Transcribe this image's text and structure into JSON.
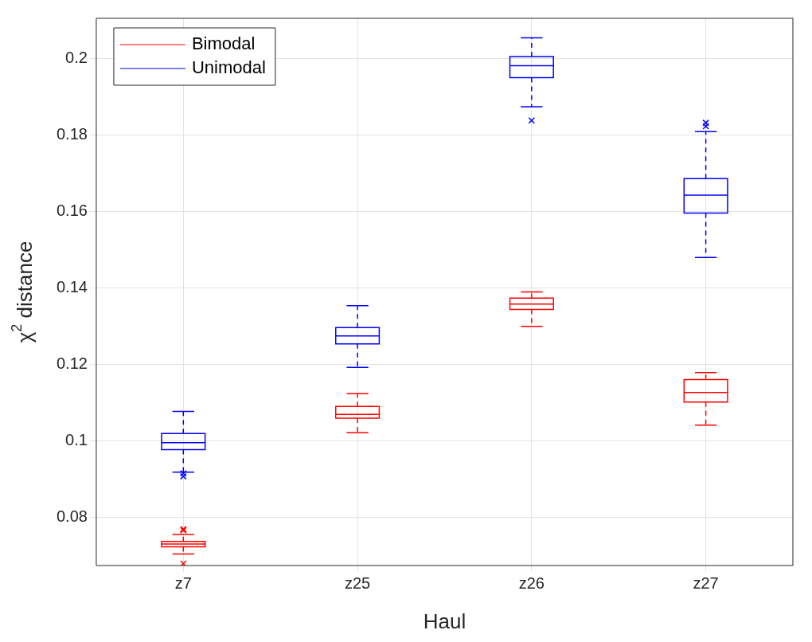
{
  "chart_data": {
    "type": "box",
    "xlabel": "Haul",
    "ylabel": "χ$^{2}$ distance",
    "categories": [
      "z7",
      "z25",
      "z26",
      "z27"
    ],
    "ylim": [
      0.0675,
      0.2105
    ],
    "yticks": [
      0.08,
      0.1,
      0.12,
      0.14,
      0.16,
      0.18,
      0.2
    ],
    "grid": true,
    "legend": "top left",
    "marker": "cross",
    "series": [
      {
        "name": "Bimodal",
        "color": "#ff0000",
        "boxes": [
          {
            "low": 0.0705,
            "q1": 0.0724,
            "median": 0.0731,
            "q3": 0.0738,
            "high": 0.0756,
            "outliers": [
              0.0767,
              0.077,
              0.068
            ]
          },
          {
            "low": 0.1022,
            "q1": 0.106,
            "median": 0.107,
            "q3": 0.1091,
            "high": 0.1124
          },
          {
            "low": 0.13,
            "q1": 0.1344,
            "median": 0.1358,
            "q3": 0.1374,
            "high": 0.139
          },
          {
            "low": 0.1042,
            "q1": 0.1102,
            "median": 0.1127,
            "q3": 0.1161,
            "high": 0.1179
          }
        ]
      },
      {
        "name": "Unimodal",
        "color": "#0000ff",
        "boxes": [
          {
            "low": 0.0919,
            "q1": 0.0978,
            "median": 0.0996,
            "q3": 0.102,
            "high": 0.1078,
            "outliers": [
              0.0916,
              0.0908
            ]
          },
          {
            "low": 0.1193,
            "q1": 0.1254,
            "median": 0.1275,
            "q3": 0.1297,
            "high": 0.1354
          },
          {
            "low": 0.1874,
            "q1": 0.195,
            "median": 0.1981,
            "q3": 0.2005,
            "high": 0.2054,
            "outliers": [
              0.1838
            ]
          },
          {
            "low": 0.148,
            "q1": 0.1596,
            "median": 0.1643,
            "q3": 0.1686,
            "high": 0.1809,
            "outliers": [
              0.1823,
              0.1832
            ]
          }
        ]
      }
    ]
  }
}
